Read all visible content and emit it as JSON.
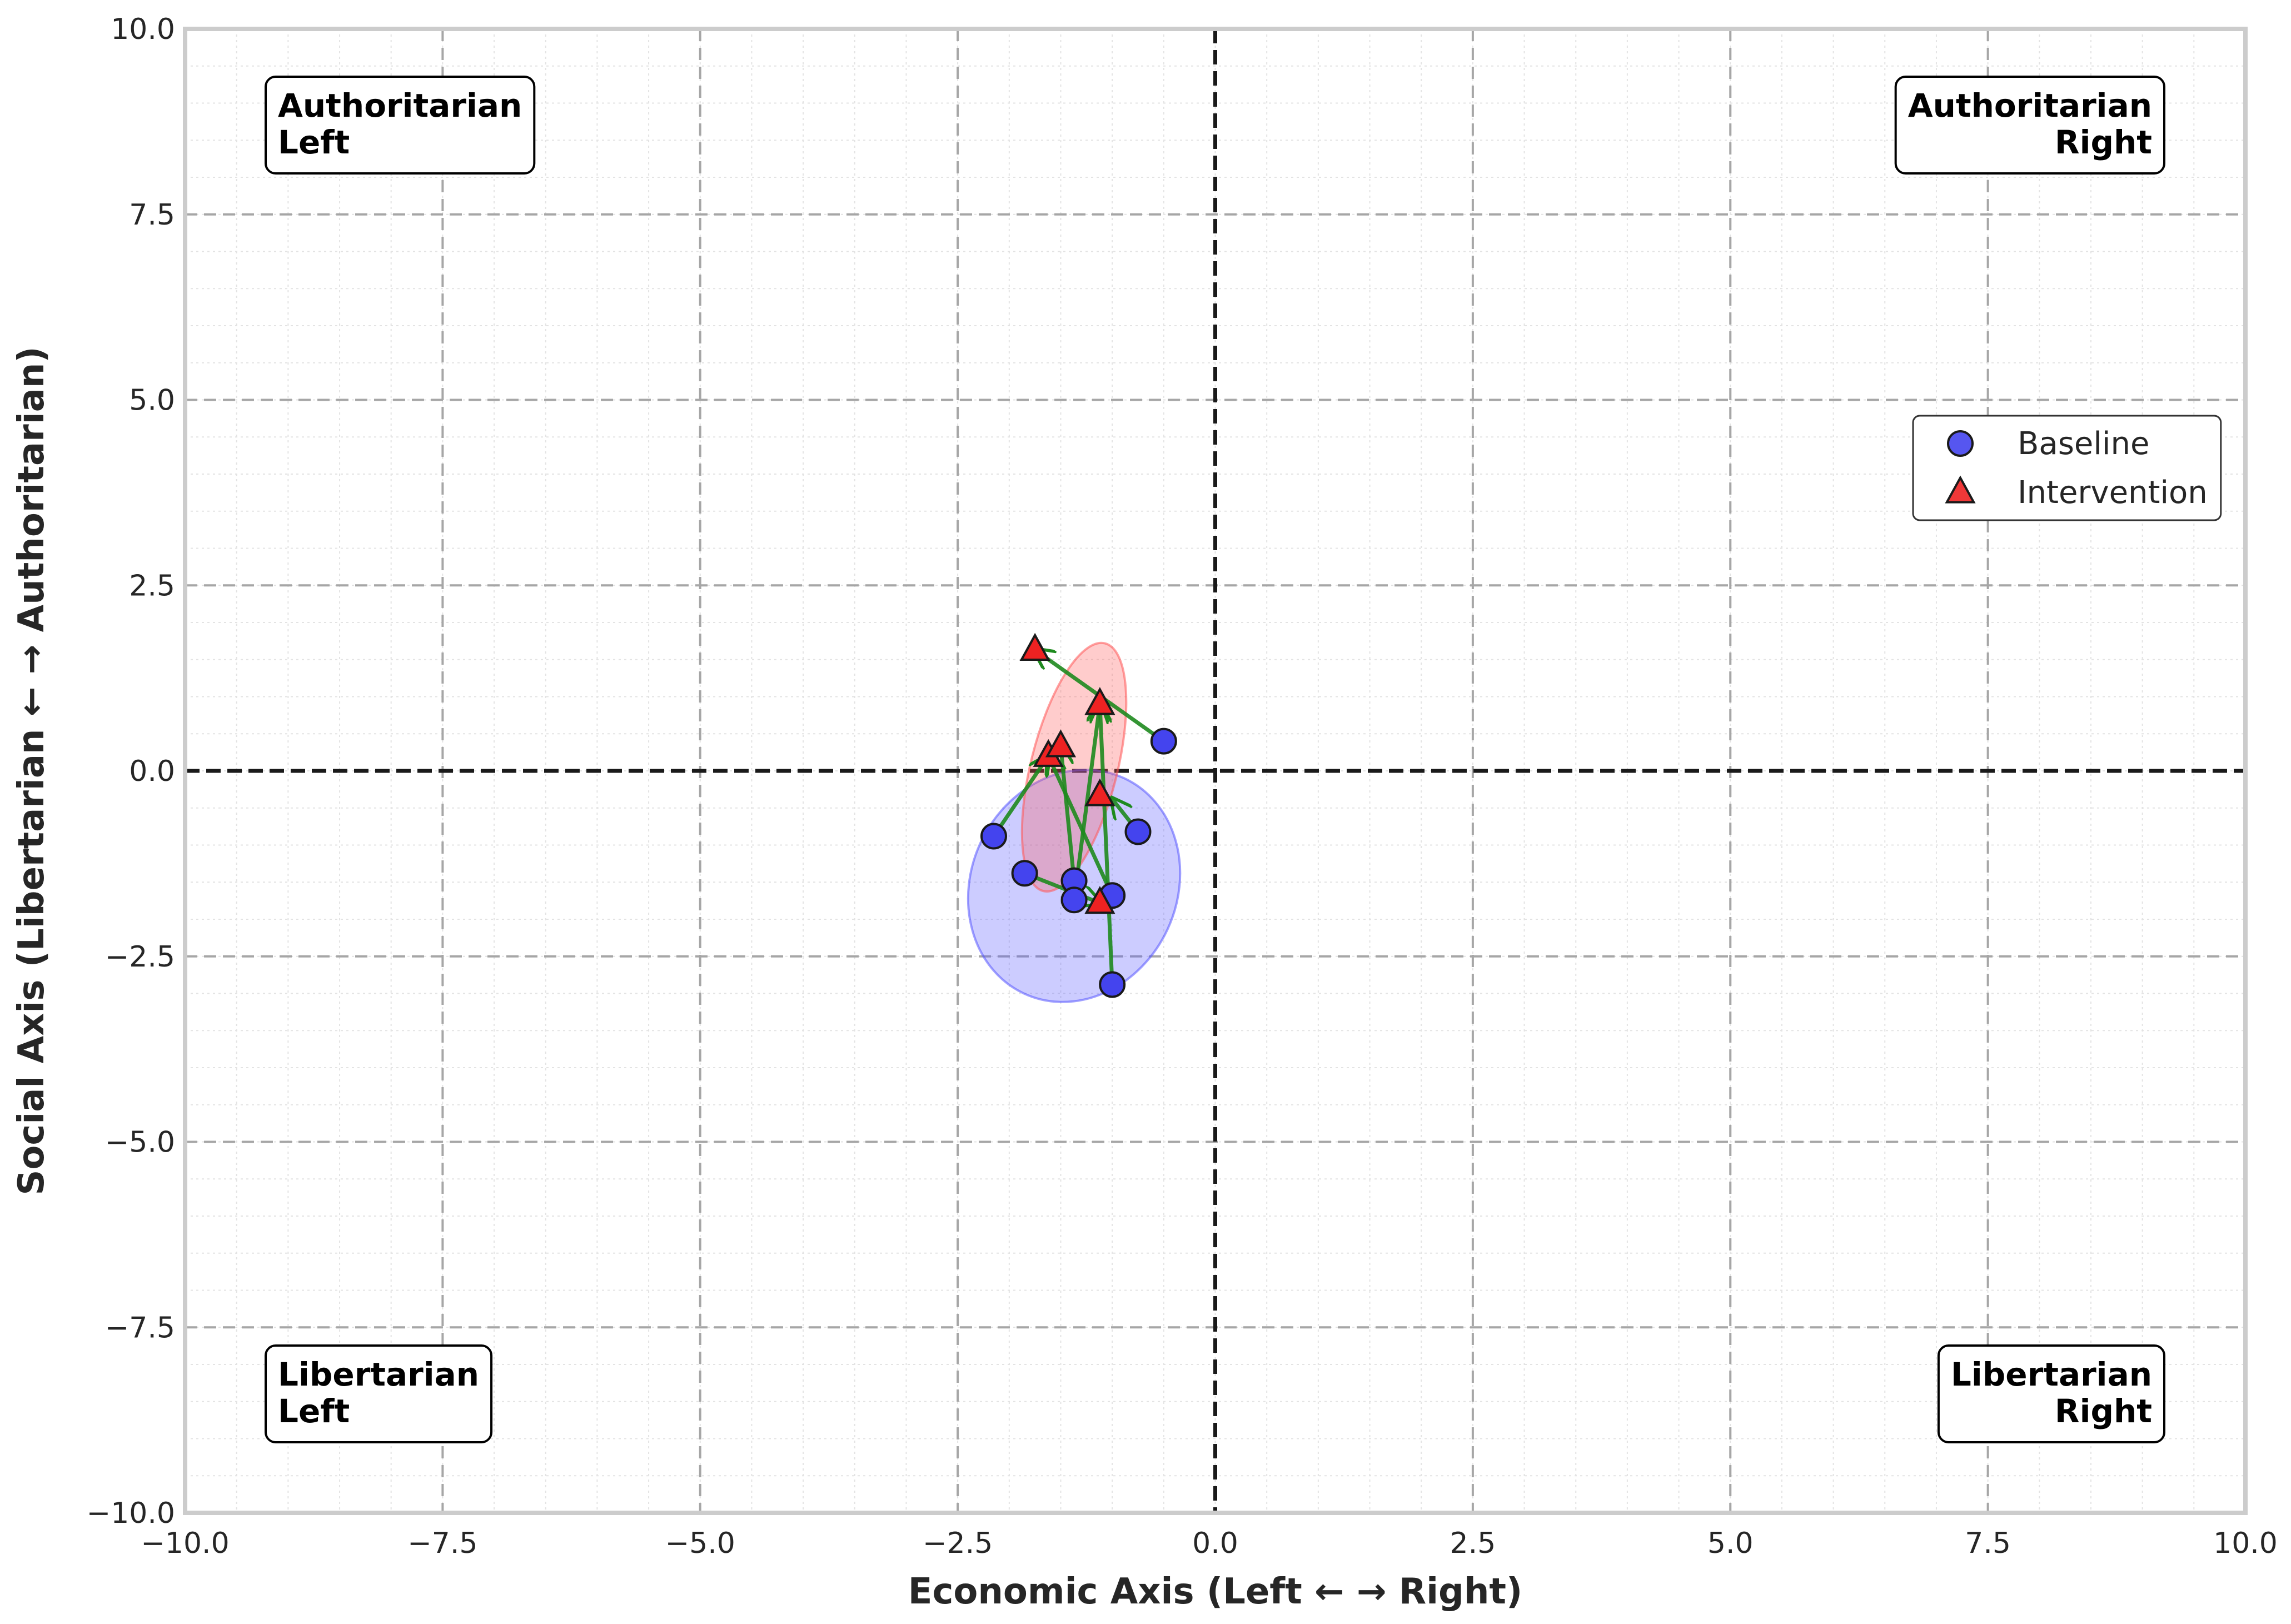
{
  "chart_data": {
    "type": "scatter",
    "title": "",
    "xlabel": "Economic Axis (Left ← → Right)",
    "ylabel": "Social Axis (Libertarian ← → Authoritarian)",
    "xlim": [
      -10,
      10
    ],
    "ylim": [
      -10,
      10
    ],
    "xticks": [
      -10,
      -7.5,
      -5,
      -2.5,
      0,
      2.5,
      5,
      7.5,
      10
    ],
    "yticks": [
      -10,
      -7.5,
      -5,
      -2.5,
      0,
      2.5,
      5,
      7.5,
      10
    ],
    "xtick_labels": [
      "−10.0",
      "−7.5",
      "−5.0",
      "−2.5",
      "0.0",
      "2.5",
      "5.0",
      "7.5",
      "10.0"
    ],
    "ytick_labels": [
      "−10.0",
      "−7.5",
      "−5.0",
      "−2.5",
      "0.0",
      "2.5",
      "5.0",
      "7.5",
      "10.0"
    ],
    "grid": true,
    "legend_position": "right",
    "quadrant_labels": [
      {
        "id": "authoritarian-left",
        "lines": [
          "Authoritarian",
          "Left"
        ],
        "align": "left",
        "corner": "top-left"
      },
      {
        "id": "authoritarian-right",
        "lines": [
          "Authoritarian",
          "Right"
        ],
        "align": "right",
        "corner": "top-right"
      },
      {
        "id": "libertarian-left",
        "lines": [
          "Libertarian",
          "Left"
        ],
        "align": "left",
        "corner": "bottom-left"
      },
      {
        "id": "libertarian-right",
        "lines": [
          "Libertarian",
          "Right"
        ],
        "align": "right",
        "corner": "bottom-right"
      }
    ],
    "series": [
      {
        "name": "Baseline",
        "marker": "circle",
        "color": "#4444ee",
        "points": [
          {
            "x": -2.15,
            "y": -0.88
          },
          {
            "x": -1.85,
            "y": -1.38
          },
          {
            "x": -1.37,
            "y": -1.48
          },
          {
            "x": -1.37,
            "y": -1.74
          },
          {
            "x": -1.0,
            "y": -1.68
          },
          {
            "x": -0.75,
            "y": -0.82
          },
          {
            "x": -0.5,
            "y": 0.4
          },
          {
            "x": -1.0,
            "y": -2.88
          }
        ]
      },
      {
        "name": "Intervention",
        "marker": "triangle",
        "color": "#ee2222",
        "points": [
          {
            "x": -1.62,
            "y": 0.2
          },
          {
            "x": -1.5,
            "y": 0.33
          },
          {
            "x": -1.75,
            "y": 1.63
          },
          {
            "x": -1.12,
            "y": 0.9
          },
          {
            "x": -1.12,
            "y": -0.33
          },
          {
            "x": -1.12,
            "y": 0.9
          },
          {
            "x": -1.75,
            "y": 1.63
          },
          {
            "x": -1.12,
            "y": -1.78
          }
        ]
      }
    ],
    "arrows": [
      {
        "from": [
          -2.15,
          -0.88
        ],
        "to": [
          -1.62,
          0.2
        ]
      },
      {
        "from": [
          -1.85,
          -1.38
        ],
        "to": [
          -1.12,
          -1.78
        ]
      },
      {
        "from": [
          -1.37,
          -1.48
        ],
        "to": [
          -1.5,
          0.33
        ]
      },
      {
        "from": [
          -1.37,
          -1.74
        ],
        "to": [
          -1.12,
          0.9
        ]
      },
      {
        "from": [
          -1.0,
          -1.68
        ],
        "to": [
          -1.62,
          0.2
        ]
      },
      {
        "from": [
          -0.75,
          -0.82
        ],
        "to": [
          -1.0,
          -0.38
        ]
      },
      {
        "from": [
          -0.5,
          0.4
        ],
        "to": [
          -1.75,
          1.63
        ]
      },
      {
        "from": [
          -1.0,
          -2.88
        ],
        "to": [
          -1.12,
          0.9
        ]
      }
    ],
    "ellipses": [
      {
        "series": "Baseline",
        "cx": -1.37,
        "cy": -1.55,
        "rx": 1.0,
        "ry": 1.6,
        "angle": 25,
        "color": "#5555ff"
      },
      {
        "series": "Intervention",
        "cx": -1.37,
        "cy": 0.05,
        "rx": 0.42,
        "ry": 1.72,
        "angle": 14,
        "color": "#ff5555"
      }
    ]
  }
}
